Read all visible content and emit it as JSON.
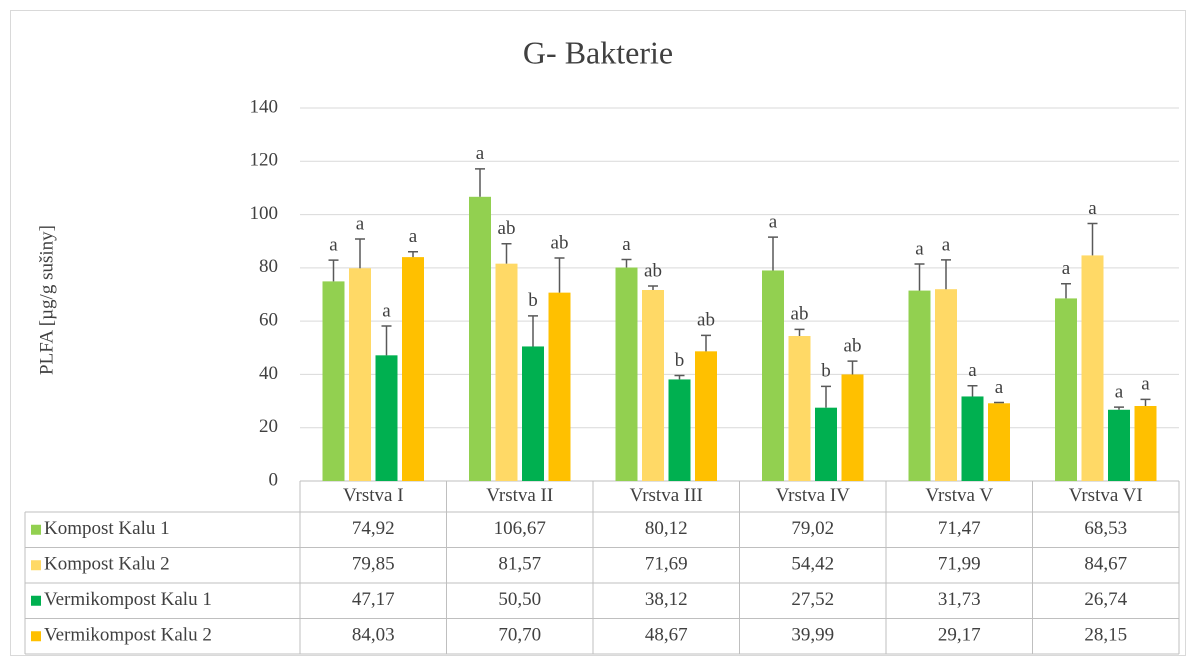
{
  "chart_data": {
    "type": "bar",
    "title": "G- Bakterie",
    "y_label": "PLFA [µg/g sušiny]",
    "categories": [
      "Vrstva I",
      "Vrstva II",
      "Vrstva III",
      "Vrstva IV",
      "Vrstva V",
      "Vrstva VI"
    ],
    "ylim": [
      0,
      140
    ],
    "yticks": [
      0,
      20,
      40,
      60,
      80,
      100,
      120,
      140
    ],
    "grid": true,
    "series": [
      {
        "name": "Kompost Kalu 1",
        "color": "#92d050",
        "values": [
          74.92,
          106.67,
          80.12,
          79.02,
          71.47,
          68.53
        ],
        "value_labels": [
          "74,92",
          "106,67",
          "80,12",
          "79,02",
          "71,47",
          "68,53"
        ],
        "errors": [
          8,
          10.5,
          3,
          12.5,
          10,
          5.5
        ],
        "annotations": [
          "a",
          "a",
          "a",
          "a",
          "a",
          "a"
        ]
      },
      {
        "name": "Kompost Kalu 2",
        "color": "#ffd966",
        "values": [
          79.85,
          81.57,
          71.69,
          54.42,
          71.99,
          84.67
        ],
        "value_labels": [
          "79,85",
          "81,57",
          "71,69",
          "54,42",
          "71,99",
          "84,67"
        ],
        "errors": [
          11,
          7.5,
          1.5,
          2.5,
          11,
          12
        ],
        "annotations": [
          "a",
          "ab",
          "ab",
          "ab",
          "a",
          "a"
        ]
      },
      {
        "name": "Vermikompost Kalu 1",
        "color": "#00b050",
        "values": [
          47.17,
          50.5,
          38.12,
          27.52,
          31.73,
          26.74
        ],
        "value_labels": [
          "47,17",
          "50,50",
          "38,12",
          "27,52",
          "31,73",
          "26,74"
        ],
        "errors": [
          11,
          11.5,
          1.5,
          8,
          4,
          1
        ],
        "annotations": [
          "a",
          "b",
          "b",
          "b",
          "a",
          "a"
        ]
      },
      {
        "name": "Vermikompost Kalu 2",
        "color": "#ffc000",
        "values": [
          84.03,
          70.7,
          48.67,
          39.99,
          29.17,
          28.15
        ],
        "value_labels": [
          "84,03",
          "70,70",
          "48,67",
          "39,99",
          "29,17",
          "28,15"
        ],
        "errors": [
          2,
          13,
          6,
          5,
          0.3,
          2.5
        ],
        "annotations": [
          "a",
          "ab",
          "ab",
          "ab",
          "a",
          "a"
        ]
      }
    ]
  }
}
